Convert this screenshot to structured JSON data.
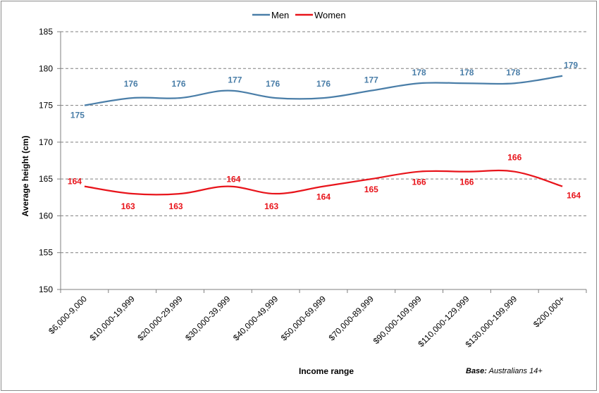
{
  "chart_data": {
    "type": "line",
    "categories": [
      "$6,000-9,000",
      "$10,000-19,999",
      "$20,000-29,999",
      "$30,000-39,999",
      "$40,000-49,999",
      "$50,000-69,999",
      "$70,000-89,999",
      "$90,000-109,999",
      "$110,000-129,999",
      "$130,000-199,999",
      "$200,000+"
    ],
    "series": [
      {
        "name": "Men",
        "color": "#4a7ea8",
        "values": [
          175,
          176,
          176,
          177,
          176,
          176,
          177,
          178,
          178,
          178,
          179
        ]
      },
      {
        "name": "Women",
        "color": "#e8141b",
        "values": [
          164,
          163,
          163,
          164,
          163,
          164,
          165,
          166,
          166,
          166,
          164
        ]
      }
    ],
    "xlabel": "Income range",
    "ylabel": "Average height (cm)",
    "ylim": [
      150,
      185
    ],
    "yticks": [
      150,
      155,
      160,
      165,
      170,
      175,
      180,
      185
    ],
    "grid": true,
    "legend": "top-center",
    "smoothed": true
  },
  "note": {
    "bold": "Base:",
    "rest": " Australians 14+"
  }
}
